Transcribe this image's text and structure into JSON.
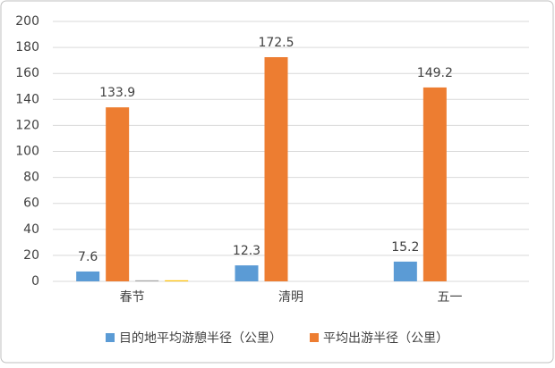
{
  "chart_data": {
    "type": "bar",
    "categories": [
      "春节",
      "清明",
      "五一"
    ],
    "series": [
      {
        "name": "目的地平均游憩半径（公里）",
        "color": "#5b9bd5",
        "values": [
          7.6,
          12.3,
          15.2
        ],
        "show_values": true
      },
      {
        "name": "平均出游半径（公里）",
        "color": "#ed7d31",
        "values": [
          133.9,
          172.5,
          149.2
        ],
        "show_values": true
      },
      {
        "color": "#a5a5a5",
        "values": [
          0.8,
          null,
          null
        ],
        "show_values": false
      },
      {
        "color": "#ffc000",
        "values": [
          0.8,
          null,
          null
        ],
        "show_values": false
      }
    ],
    "ylim": [
      0,
      200
    ],
    "yticks": [
      0,
      20,
      40,
      60,
      80,
      100,
      120,
      140,
      160,
      180,
      200
    ],
    "grid": true,
    "legend": "bottom"
  }
}
